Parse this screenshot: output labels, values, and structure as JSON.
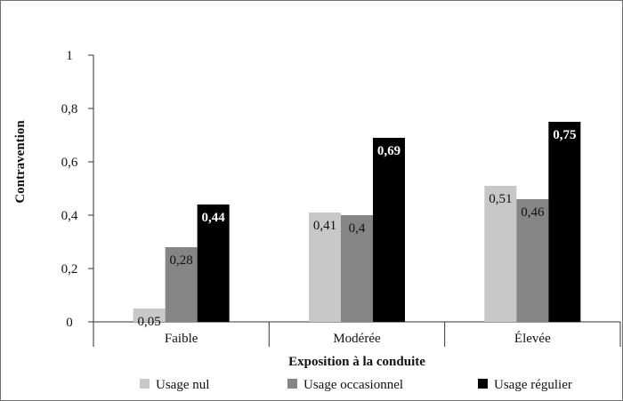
{
  "chart_data": {
    "type": "bar",
    "categories": [
      "Faible",
      "Modérée",
      "Élevée"
    ],
    "series": [
      {
        "name": "Usage nul",
        "color": "#c8c8c8",
        "values": [
          0.05,
          0.41,
          0.51
        ],
        "labels": [
          "0,05",
          "0,41",
          "0,51"
        ],
        "label_style": "normal"
      },
      {
        "name": "Usage occasionnel",
        "color": "#858585",
        "values": [
          0.28,
          0.4,
          0.46
        ],
        "labels": [
          "0,28",
          "0,4",
          "0,46"
        ],
        "label_style": "normal"
      },
      {
        "name": "Usage régulier",
        "color": "#000000",
        "values": [
          0.44,
          0.69,
          0.75
        ],
        "labels": [
          "0,44",
          "0,69",
          "0,75"
        ],
        "label_style": "bold"
      }
    ],
    "xlabel": "Exposition à la conduite",
    "ylabel": "Contravention",
    "ylim": [
      0,
      1
    ],
    "yticks": [
      0,
      0.2,
      0.4,
      0.6,
      0.8,
      1
    ],
    "ytick_labels": [
      "0",
      "0,2",
      "0,4",
      "0,6",
      "0,8",
      "1"
    ],
    "grid": false,
    "legend_position": "bottom"
  }
}
